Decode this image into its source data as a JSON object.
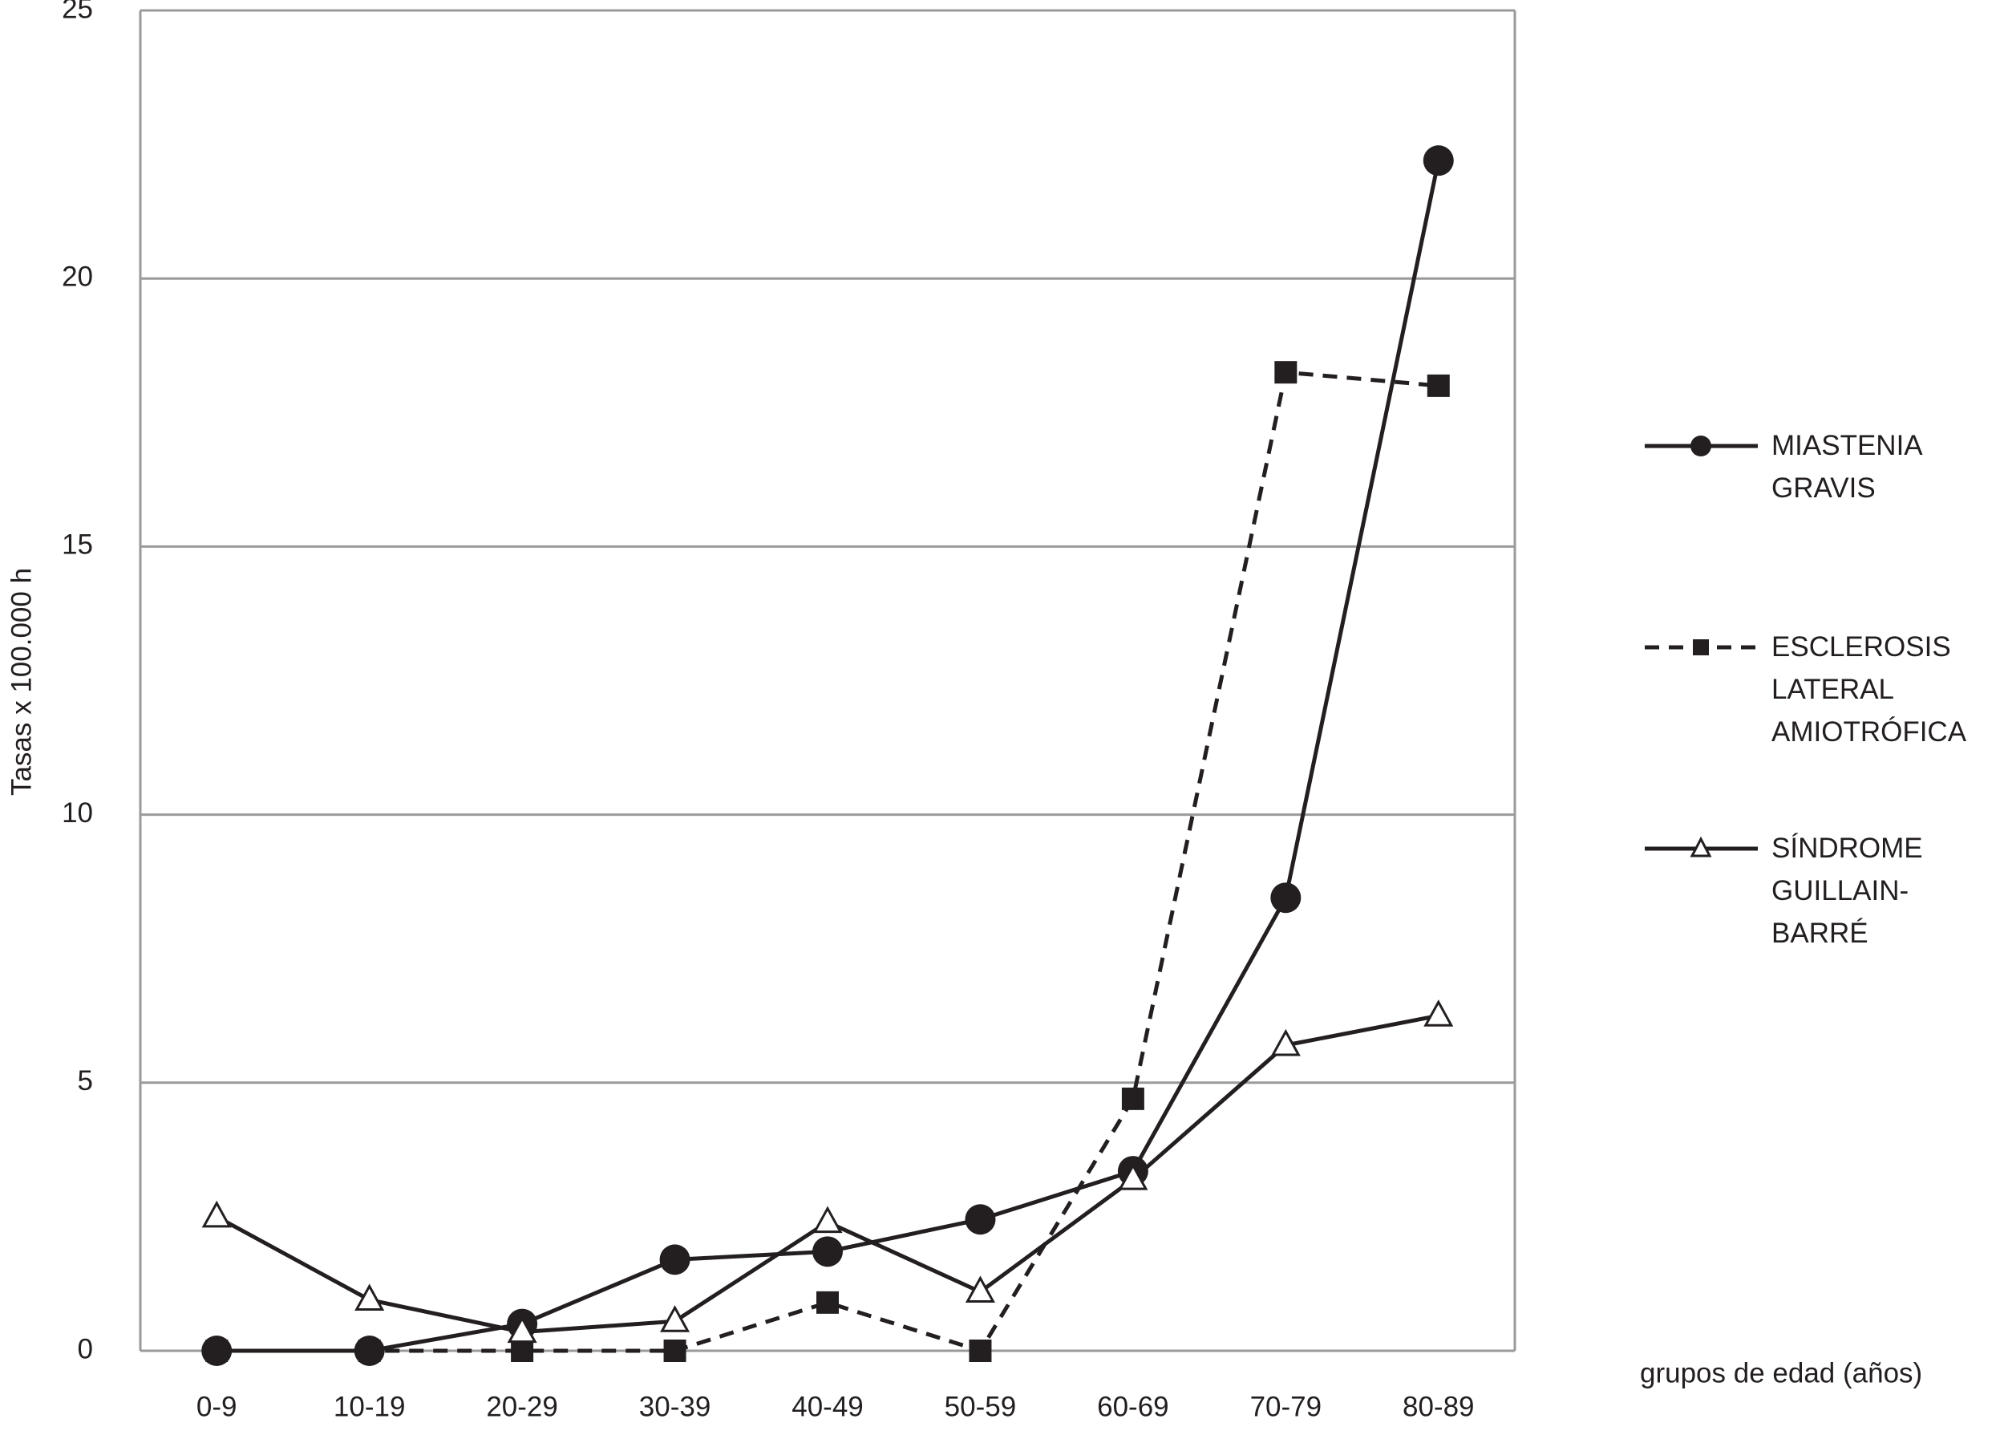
{
  "chart_data": {
    "type": "line",
    "y_label": "Tasas x 100.000 h",
    "x_label": "grupos de edad (años)",
    "categories": [
      "0-9",
      "10-19",
      "20-29",
      "30-39",
      "40-49",
      "50-59",
      "60-69",
      "70-79",
      "80-89"
    ],
    "series": [
      {
        "name": "MIASTENIA GRAVIS",
        "color": "#231f20",
        "marker": "circle",
        "linestyle": "solid",
        "values": [
          0,
          0,
          0.5,
          1.7,
          1.85,
          2.45,
          3.35,
          8.45,
          22.2
        ]
      },
      {
        "name": "ESCLEROSIS LATERAL AMIOTRÓFICA",
        "color": "#231f20",
        "marker": "square",
        "linestyle": "dashed",
        "values": [
          0,
          0,
          0,
          0,
          0.9,
          0,
          4.7,
          18.25,
          18.0
        ]
      },
      {
        "name": "SÍNDROME GUILLAIN-BARRÉ",
        "color": "#231f20",
        "marker": "triangle",
        "linestyle": "solid",
        "values": [
          2.5,
          0.95,
          0.35,
          0.55,
          2.4,
          1.1,
          3.2,
          5.7,
          6.25
        ]
      }
    ],
    "ylim": [
      0,
      25
    ],
    "yticks": [
      0,
      5,
      10,
      15,
      20,
      25
    ],
    "grid": true,
    "legend": "right"
  }
}
